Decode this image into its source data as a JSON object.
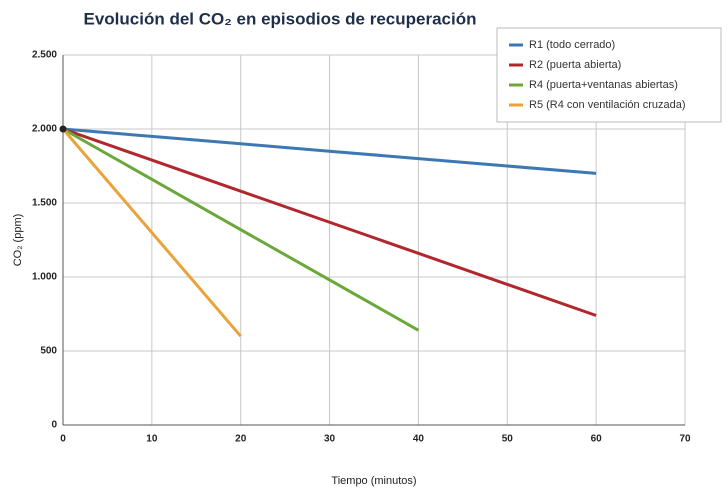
{
  "chart_data": {
    "type": "line",
    "title": "Evolución del CO₂ en episodios de recuperación",
    "x_label": "Tiempo (minutos)",
    "y_label": "CO₂ (ppm)",
    "x": [
      0,
      10,
      20,
      30,
      40,
      50,
      60
    ],
    "series": [
      {
        "name": "R1 (todo cerrado)",
        "color": "#3d78b5",
        "values": [
          2000,
          1950,
          1900,
          1850,
          1800,
          1750,
          1700
        ]
      },
      {
        "name": "R2 (puerta abierta)",
        "color": "#b0282d",
        "values": [
          2000,
          1790,
          1580,
          1370,
          1160,
          950,
          740
        ]
      },
      {
        "name": "R4 (puerta+ventanas abiertas)",
        "color": "#6aa83a",
        "values": [
          2000,
          1660,
          1320,
          980,
          640,
          null,
          null
        ]
      },
      {
        "name": "R5 (R4 con ventilación cruzada)",
        "color": "#e8a43a",
        "values": [
          2000,
          1300,
          600,
          null,
          null,
          null,
          null
        ]
      }
    ],
    "xlim": [
      0,
      70
    ],
    "xticks": [
      0,
      10,
      20,
      30,
      40,
      50,
      60,
      70
    ],
    "ylim": [
      0,
      2500
    ],
    "yticks": [
      0,
      500,
      {
        "value": 1000,
        "label": "1.000"
      },
      {
        "value": 1500,
        "label": "1.500"
      },
      {
        "value": 2000,
        "label": "2.000"
      },
      {
        "value": 2500,
        "label": "2.500"
      }
    ],
    "grid": true,
    "legend": "top-right"
  }
}
